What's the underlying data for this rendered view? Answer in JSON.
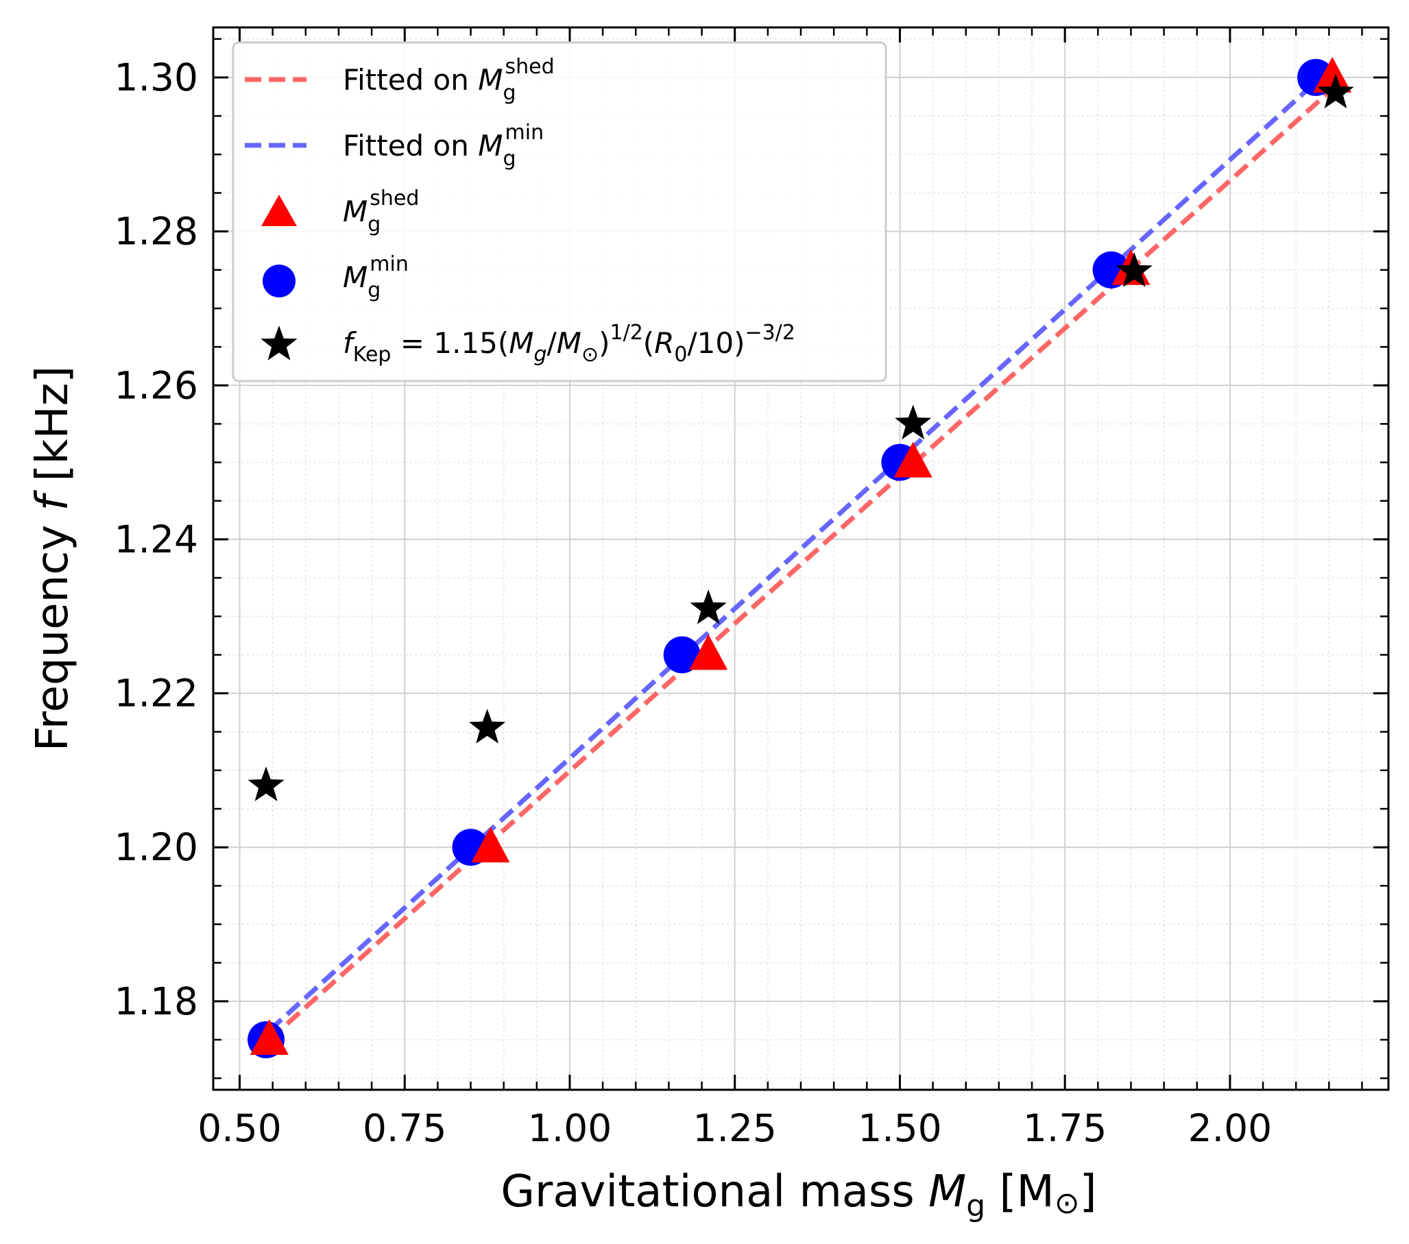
{
  "chart_data": {
    "type": "scatter",
    "xlabel": {
      "main": "Gravitational mass ",
      "sym": "M",
      "sub": "g",
      "unit": " [M",
      "sun": "⊙",
      "end": "]"
    },
    "ylabel": {
      "main": "Frequency ",
      "sym": "f",
      "unit": " [kHz]"
    },
    "xlim": [
      0.46,
      2.24
    ],
    "ylim": [
      1.1685,
      1.3065
    ],
    "xticks": [
      0.5,
      0.75,
      1.0,
      1.25,
      1.5,
      1.75,
      2.0
    ],
    "xtick_labels": [
      "0.50",
      "0.75",
      "1.00",
      "1.25",
      "1.50",
      "1.75",
      "2.00"
    ],
    "yticks": [
      1.18,
      1.2,
      1.22,
      1.24,
      1.26,
      1.28,
      1.3
    ],
    "ytick_labels": [
      "1.18",
      "1.20",
      "1.22",
      "1.24",
      "1.26",
      "1.28",
      "1.30"
    ],
    "grid": true,
    "legend_position": "top-left",
    "series": [
      {
        "name": "Fitted on M_g^shed",
        "kind": "line",
        "style": "dashed",
        "color": "#ff6666",
        "legend": {
          "prefix": "Fitted on ",
          "sym": "M",
          "sub": "g",
          "sup": "shed"
        },
        "x": [
          0.545,
          2.155
        ],
        "y": [
          1.175,
          1.2985
        ]
      },
      {
        "name": "Fitted on M_g^min",
        "kind": "line",
        "style": "dashed",
        "color": "#6666ff",
        "legend": {
          "prefix": "Fitted on ",
          "sym": "M",
          "sub": "g",
          "sup": "min"
        },
        "x": [
          0.545,
          2.135
        ],
        "y": [
          1.1762,
          1.2998
        ]
      },
      {
        "name": "M_g^shed",
        "kind": "marker",
        "marker": "triangle",
        "color": "#ff0000",
        "legend": {
          "prefix": "",
          "sym": "M",
          "sub": "g",
          "sup": "shed"
        },
        "x": [
          0.545,
          0.88,
          1.21,
          1.52,
          1.85,
          2.155
        ],
        "y": [
          1.175,
          1.2,
          1.225,
          1.25,
          1.275,
          1.3
        ]
      },
      {
        "name": "M_g^min",
        "kind": "marker",
        "marker": "circle",
        "color": "#0000ff",
        "legend": {
          "prefix": "",
          "sym": "M",
          "sub": "g",
          "sup": "min"
        },
        "x": [
          0.54,
          0.85,
          1.17,
          1.5,
          1.82,
          2.13
        ],
        "y": [
          1.175,
          1.2,
          1.225,
          1.25,
          1.275,
          1.3
        ]
      },
      {
        "name": "f_Kep = 1.15(M_g/M_⊙)^1/2(R_0/10)^-3/2",
        "kind": "marker",
        "marker": "star",
        "color": "#000000",
        "legend": {
          "formula": true
        },
        "x": [
          0.54,
          0.875,
          1.21,
          1.52,
          1.855,
          2.16
        ],
        "y": [
          1.208,
          1.2155,
          1.231,
          1.255,
          1.2748,
          1.298
        ]
      }
    ],
    "legend_formula": {
      "f": "f",
      "kep": "Kep",
      "eq": " = 1.15(",
      "m": "M",
      "g": "g",
      "slash": "/",
      "msun": "M",
      "sun": "⊙",
      "close1": ")",
      "exp1": "1/2",
      "open2": "(",
      "r": "R",
      "r0": "0",
      "div": "/10)",
      "exp2": "−3/2"
    }
  }
}
